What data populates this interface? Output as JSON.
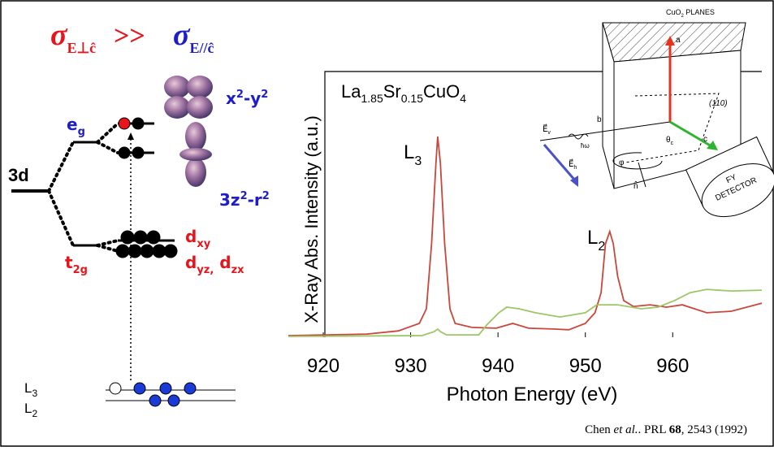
{
  "diagram": {
    "title": {
      "sigma_1": "σ",
      "sub_1": "E⊥ĉ",
      "relation": ">>",
      "sigma_2": "σ",
      "sub_2": "E//ĉ"
    },
    "levels": {
      "d3": "3d",
      "eg": [
        "e",
        "g"
      ],
      "t2g": [
        "t",
        "2g"
      ],
      "x2y2": [
        "x",
        "2",
        "-y",
        "2"
      ],
      "z2": [
        "3z",
        "2",
        "-r",
        "2"
      ],
      "dxy": [
        "d",
        "xy"
      ],
      "dyzzx": [
        "d",
        "yz,",
        "d",
        "zx"
      ],
      "L3": [
        "L",
        "3"
      ],
      "L2": [
        "L",
        "2"
      ]
    },
    "geometry": {
      "planes": [
        "CuO",
        "2",
        " PLANES"
      ],
      "a": "a",
      "b": "b",
      "c": "c",
      "dir": "(110)",
      "theta": [
        "θ",
        "c"
      ],
      "phi": "φ",
      "n": "n̂",
      "hw": "ħω",
      "ev": [
        "E⃗",
        "v"
      ],
      "eh": [
        "E⃗",
        "h"
      ],
      "detector": [
        "FY",
        "DETECTOR"
      ]
    }
  },
  "chart_data": {
    "type": "line",
    "sample": [
      "La",
      "1.85",
      "Sr",
      "0.15",
      "CuO",
      "4"
    ],
    "peaks": {
      "L3": [
        "L",
        "3"
      ],
      "L2": [
        "L",
        "2"
      ]
    },
    "xlabel": "Photon Energy (eV)",
    "ylabel": "X-Ray Abs. Intensity (a.u.)",
    "xlim": [
      916,
      970.2
    ],
    "ylim": [
      0,
      1
    ],
    "xticks": [
      920,
      930,
      940,
      950,
      960
    ],
    "series": [
      {
        "color": "#c9473b",
        "x": [
          916,
          925,
          928.6,
          931,
          931.8,
          932.4,
          932.9,
          933.1,
          933.4,
          933.9,
          934.5,
          935.1,
          937,
          939.8,
          941.7,
          943.5,
          946.3,
          948.1,
          950,
          951.1,
          951.8,
          952.3,
          952.8,
          953.2,
          953.7,
          954.4,
          955.5,
          957.4,
          959.3,
          961.1,
          963.9,
          966.7,
          970.2
        ],
        "values": [
          0.006,
          0.012,
          0.024,
          0.052,
          0.107,
          0.352,
          0.657,
          0.755,
          0.657,
          0.352,
          0.107,
          0.052,
          0.037,
          0.034,
          0.052,
          0.034,
          0.031,
          0.028,
          0.052,
          0.092,
          0.168,
          0.352,
          0.398,
          0.352,
          0.229,
          0.138,
          0.116,
          0.122,
          0.113,
          0.122,
          0.092,
          0.098,
          0.128
        ]
      },
      {
        "color": "#9cc766",
        "x": [
          916,
          931.3,
          932.7,
          933.1,
          933.4,
          934.1,
          937.8,
          938.7,
          940.1,
          941,
          942.4,
          944.3,
          947.1,
          950,
          951.3,
          953.7,
          956.4,
          958.3,
          960.2,
          962,
          963.9,
          966.7,
          970.2
        ],
        "values": [
          0.003,
          0.006,
          0.021,
          0.031,
          0.021,
          0.009,
          0.009,
          0.046,
          0.092,
          0.113,
          0.107,
          0.092,
          0.076,
          0.092,
          0.122,
          0.122,
          0.107,
          0.113,
          0.138,
          0.168,
          0.18,
          0.174,
          0.177
        ]
      }
    ],
    "citation": [
      "Chen ",
      "et al.",
      ". PRL ",
      "68",
      ", 2543 (1992)"
    ]
  }
}
